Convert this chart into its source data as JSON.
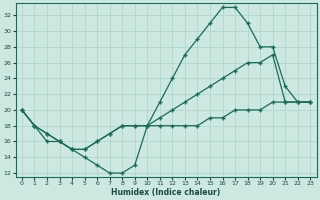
{
  "xlabel": "Humidex (Indice chaleur)",
  "bg_color": "#cce8e0",
  "grid_color": "#b0d8ce",
  "line_color": "#1a6b5a",
  "xlim": [
    -0.5,
    23.5
  ],
  "ylim": [
    11.5,
    33.5
  ],
  "yticks": [
    12,
    14,
    16,
    18,
    20,
    22,
    24,
    26,
    28,
    30,
    32
  ],
  "xticks": [
    0,
    1,
    2,
    3,
    4,
    5,
    6,
    7,
    8,
    9,
    10,
    11,
    12,
    13,
    14,
    15,
    16,
    17,
    18,
    19,
    20,
    21,
    22,
    23
  ],
  "series1_x": [
    0,
    1,
    2,
    3,
    4,
    5,
    6,
    7,
    8,
    9,
    10,
    11,
    12,
    13,
    14,
    15,
    16,
    17,
    18,
    19,
    20,
    21,
    22,
    23
  ],
  "series1_y": [
    20,
    18,
    17,
    16,
    15,
    15,
    16,
    17,
    18,
    18,
    18,
    19,
    20,
    21,
    22,
    23,
    24,
    25,
    26,
    26,
    27,
    21,
    21,
    21
  ],
  "series2_x": [
    0,
    1,
    2,
    3,
    4,
    5,
    6,
    7,
    8,
    9,
    10,
    11,
    12,
    13,
    14,
    15,
    16,
    17,
    18,
    19,
    20,
    21,
    22,
    23
  ],
  "series2_y": [
    20,
    18,
    17,
    16,
    15,
    15,
    16,
    17,
    18,
    18,
    18,
    21,
    24,
    27,
    29,
    31,
    33,
    33,
    31,
    28,
    28,
    23,
    21,
    21
  ],
  "series3_x": [
    0,
    1,
    2,
    3,
    4,
    5,
    6,
    7,
    8,
    9,
    10,
    11,
    12,
    13,
    14,
    15,
    16,
    17,
    18,
    19,
    20,
    21,
    22,
    23
  ],
  "series3_y": [
    20,
    18,
    16,
    16,
    15,
    14,
    13,
    12,
    12,
    13,
    18,
    18,
    18,
    18,
    18,
    19,
    19,
    20,
    20,
    20,
    21,
    21,
    21,
    21
  ]
}
